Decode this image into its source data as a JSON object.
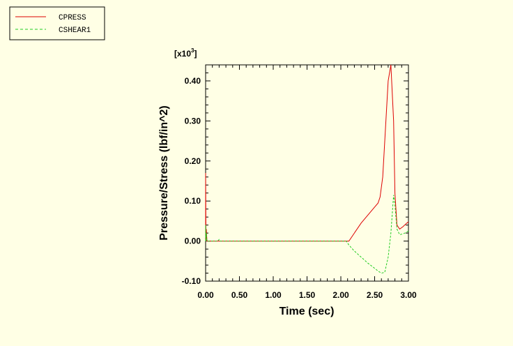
{
  "chart_data": {
    "type": "line",
    "xlabel": "Time (sec)",
    "ylabel": "Pressure/Stress (lbf/in^2)",
    "y_multiplier_label": "[x10",
    "y_multiplier_exp": "3",
    "y_multiplier_close": "]",
    "xlim": [
      0,
      3.0
    ],
    "ylim": [
      -0.1,
      0.44
    ],
    "x_ticks": [
      0.0,
      0.5,
      1.0,
      1.5,
      2.0,
      2.5,
      3.0
    ],
    "x_tick_labels": [
      "0.00",
      "0.50",
      "1.00",
      "1.50",
      "2.00",
      "2.50",
      "3.00"
    ],
    "y_ticks": [
      -0.1,
      0.0,
      0.1,
      0.2,
      0.3,
      0.4
    ],
    "y_tick_labels": [
      "-0.10",
      "0.00",
      "0.10",
      "0.20",
      "0.30",
      "0.40"
    ],
    "grid": false,
    "legend_position": "top-left",
    "series": [
      {
        "name": "CPRESS",
        "color": "#dd0000",
        "dash": "solid",
        "x": [
          0.0,
          0.0,
          0.005,
          0.01,
          0.02,
          2.08,
          2.12,
          2.2,
          2.3,
          2.4,
          2.5,
          2.55,
          2.58,
          2.62,
          2.66,
          2.7,
          2.74,
          2.78,
          2.8,
          2.83,
          2.87,
          2.92,
          2.97,
          3.0
        ],
        "y": [
          0.0,
          0.17,
          0.0,
          0.03,
          0.0,
          0.0,
          0.0,
          0.02,
          0.045,
          0.065,
          0.085,
          0.095,
          0.11,
          0.16,
          0.28,
          0.4,
          0.44,
          0.3,
          0.12,
          0.04,
          0.03,
          0.036,
          0.044,
          0.048
        ]
      },
      {
        "name": "CSHEAR1",
        "color": "#22cc22",
        "dash": "dashed",
        "x": [
          0.0,
          0.0,
          0.005,
          0.01,
          0.02,
          0.18,
          0.2,
          0.22,
          2.08,
          2.12,
          2.2,
          2.3,
          2.4,
          2.5,
          2.55,
          2.6,
          2.65,
          2.7,
          2.74,
          2.78,
          2.8,
          2.83,
          2.87,
          2.92,
          2.97,
          3.0
        ],
        "y": [
          0.0,
          0.04,
          0.0,
          0.02,
          0.0,
          0.0,
          0.004,
          0.0,
          0.0,
          -0.01,
          -0.025,
          -0.04,
          -0.055,
          -0.068,
          -0.075,
          -0.08,
          -0.078,
          -0.04,
          0.02,
          0.115,
          0.09,
          0.03,
          0.016,
          0.018,
          0.022,
          0.025
        ]
      }
    ]
  }
}
